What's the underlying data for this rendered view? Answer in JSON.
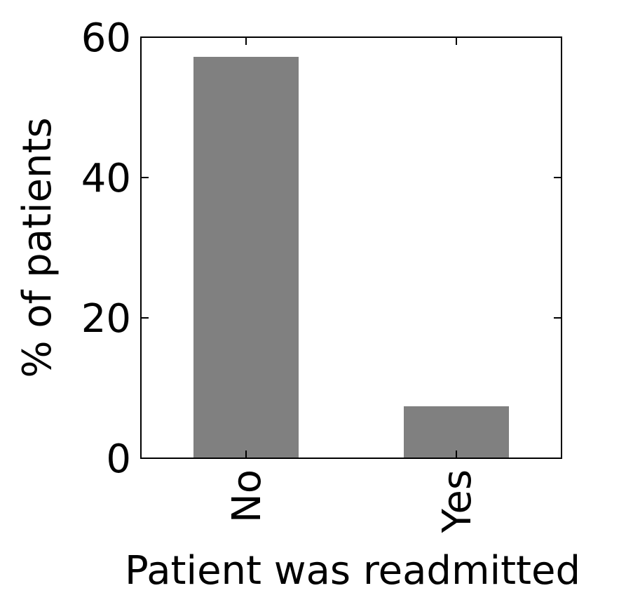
{
  "chart_data": {
    "type": "bar",
    "categories": [
      "No",
      "Yes"
    ],
    "values": [
      57.2,
      7.4
    ],
    "xlabel": "Patient was readmitted",
    "ylabel": "% of patients",
    "ylim": [
      0,
      60
    ],
    "yticks": [
      0,
      20,
      40,
      60
    ],
    "ytick_labels": [
      "0",
      "20",
      "40",
      "60"
    ],
    "grid": false,
    "legend": "none",
    "bar_color": "#808080",
    "axis_color": "#000000"
  }
}
